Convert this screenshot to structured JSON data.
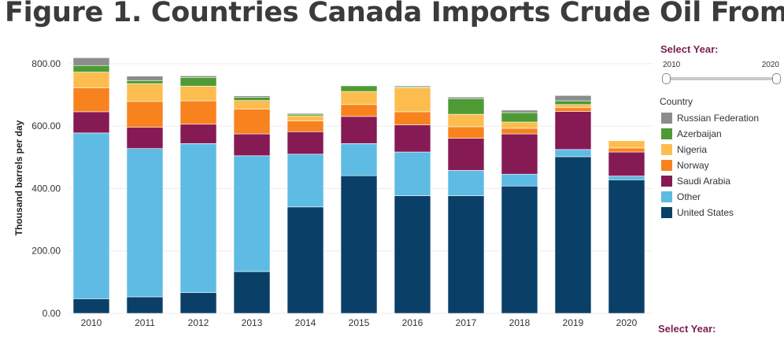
{
  "title": "Figure 1. Countries Canada Imports Crude Oil From",
  "controls": {
    "select_year_label": "Select Year:",
    "select_year_label_bottom": "Select Year:",
    "range_min_label": "2010",
    "range_max_label": "2020",
    "range_value": [
      2010,
      2020
    ]
  },
  "legend": {
    "title": "Country",
    "items": [
      {
        "label": "Russian Federation",
        "color": "#8c8c8c"
      },
      {
        "label": "Azerbaijan",
        "color": "#4e9a35"
      },
      {
        "label": "Nigeria",
        "color": "#fdbd4e"
      },
      {
        "label": "Norway",
        "color": "#f7821e"
      },
      {
        "label": "Saudi Arabia",
        "color": "#861a55"
      },
      {
        "label": "Other",
        "color": "#5ebbe3"
      },
      {
        "label": "United States",
        "color": "#0a4068"
      }
    ]
  },
  "chart_data": {
    "type": "bar",
    "stacked": true,
    "ylabel": "Thousand barrels per day",
    "xlabel": "",
    "ylim": [
      0,
      840
    ],
    "yticks": [
      0,
      200,
      400,
      600,
      800
    ],
    "ytick_labels": [
      "0.00",
      "200.00",
      "400.00",
      "600.00",
      "800.00"
    ],
    "grid": true,
    "legend_position": "right",
    "categories": [
      "2010",
      "2011",
      "2012",
      "2013",
      "2014",
      "2015",
      "2016",
      "2017",
      "2018",
      "2019",
      "2020"
    ],
    "series": [
      {
        "name": "United States",
        "color": "#0a4068",
        "values": [
          47,
          53,
          67,
          134,
          341,
          441,
          377,
          377,
          408,
          502,
          428
        ]
      },
      {
        "name": "Other",
        "color": "#5ebbe3",
        "values": [
          531,
          475,
          477,
          371,
          169,
          103,
          140,
          81,
          38,
          23,
          12
        ]
      },
      {
        "name": "Saudi Arabia",
        "color": "#861a55",
        "values": [
          68,
          68,
          62,
          70,
          72,
          87,
          87,
          103,
          129,
          122,
          77
        ]
      },
      {
        "name": "Norway",
        "color": "#f7821e",
        "values": [
          77,
          83,
          75,
          80,
          35,
          38,
          42,
          37,
          18,
          12,
          13
        ]
      },
      {
        "name": "Nigeria",
        "color": "#fdbd4e",
        "values": [
          50,
          57,
          47,
          27,
          16,
          42,
          77,
          40,
          20,
          10,
          23
        ]
      },
      {
        "name": "Azerbaijan",
        "color": "#4e9a35",
        "values": [
          21,
          10,
          28,
          10,
          5,
          18,
          3,
          50,
          30,
          12,
          0
        ]
      },
      {
        "name": "Russian Federation",
        "color": "#8c8c8c",
        "values": [
          25,
          14,
          5,
          5,
          3,
          0,
          3,
          5,
          8,
          17,
          0
        ]
      }
    ]
  }
}
